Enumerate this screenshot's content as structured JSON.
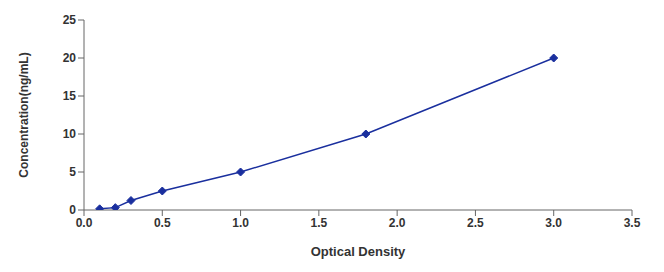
{
  "chart_data": {
    "type": "line",
    "x": [
      0.1,
      0.2,
      0.3,
      0.5,
      1.0,
      1.8,
      3.0
    ],
    "values": [
      0.156,
      0.312,
      1.25,
      2.5,
      5.0,
      10.0,
      20.0
    ],
    "color": "#1A2F9E",
    "marker": "diamond",
    "line_style": "solid",
    "xlabel": "Optical Density",
    "ylabel": "Concentration(ng/mL)",
    "xlim": [
      0,
      3.5
    ],
    "ylim": [
      0,
      25
    ],
    "xticks": [
      {
        "value": 0,
        "label": "0.0"
      },
      0.5,
      {
        "value": 1.0,
        "label": "1.0"
      },
      1.5,
      {
        "value": 2.0,
        "label": "2.0"
      },
      2.5,
      {
        "value": 3.0,
        "label": "3.0"
      },
      3.5
    ],
    "yticks": [
      0,
      5,
      10,
      15,
      20,
      25
    ],
    "grid": false
  }
}
